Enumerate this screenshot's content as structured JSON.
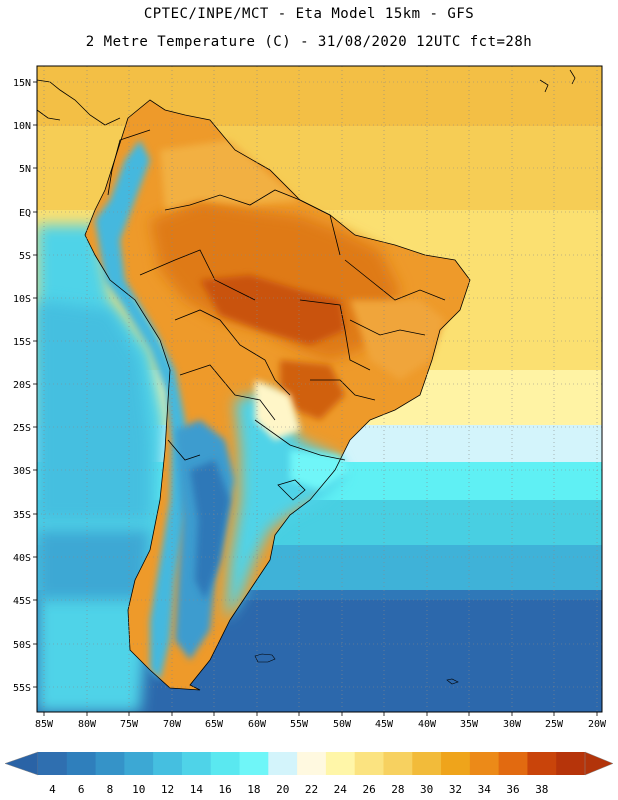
{
  "header": {
    "line1": "CPTEC/INPE/MCT -  Eta Model 15km - GFS",
    "line2": "2 Metre Temperature (C) - 31/08/2020 12UTC fct=28h"
  },
  "axes": {
    "lat_labels": [
      "15N",
      "10N",
      "5N",
      "EQ",
      "5S",
      "10S",
      "15S",
      "20S",
      "25S",
      "30S",
      "35S",
      "40S",
      "45S",
      "50S",
      "55S"
    ],
    "lon_labels": [
      "85W",
      "80W",
      "75W",
      "70W",
      "65W",
      "60W",
      "55W",
      "50W",
      "45W",
      "40W",
      "35W",
      "30W",
      "25W",
      "20W"
    ]
  },
  "legend": {
    "values": [
      "4",
      "6",
      "8",
      "10",
      "12",
      "14",
      "16",
      "18",
      "20",
      "22",
      "24",
      "26",
      "28",
      "30",
      "32",
      "34",
      "36",
      "38"
    ],
    "colors": [
      "#2f6fb0",
      "#2f7fbc",
      "#3593c8",
      "#3ca8d4",
      "#45bfe0",
      "#4fd3e8",
      "#5ae8f0",
      "#6ff6f8",
      "#d3f4fb",
      "#fff9e0",
      "#fff6a8",
      "#fbe380",
      "#f7d160",
      "#f2bb3a",
      "#efa41b",
      "#ec8a18",
      "#e26a10",
      "#c9440a",
      "#b6340a"
    ],
    "arrow_low_color": "#2a63a6",
    "arrow_high_color": "#b2340a"
  }
}
